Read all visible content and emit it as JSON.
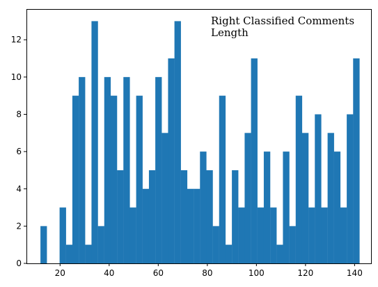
{
  "chart_data": {
    "type": "bar",
    "title": "",
    "xlabel": "",
    "ylabel": "",
    "legend": {
      "lines": [
        "Right Classified Comments",
        "Length"
      ],
      "placement": "top-right"
    },
    "xlim": [
      6.3,
      146.7
    ],
    "ylim": [
      0,
      13.65
    ],
    "xticks": [
      20,
      40,
      60,
      80,
      100,
      120,
      140
    ],
    "yticks": [
      0,
      2,
      4,
      6,
      8,
      10,
      12
    ],
    "grid": false,
    "color": "#1f77b4",
    "bin_start": 12,
    "bin_width": 2.6,
    "counts": [
      2,
      0,
      0,
      3,
      1,
      9,
      10,
      1,
      13,
      2,
      10,
      9,
      5,
      10,
      3,
      9,
      4,
      5,
      10,
      7,
      11,
      13,
      5,
      4,
      4,
      6,
      5,
      2,
      9,
      1,
      5,
      3,
      7,
      11,
      3,
      6,
      3,
      1,
      6,
      2,
      9,
      7,
      3,
      8,
      3,
      7,
      6,
      3,
      8,
      11
    ]
  }
}
